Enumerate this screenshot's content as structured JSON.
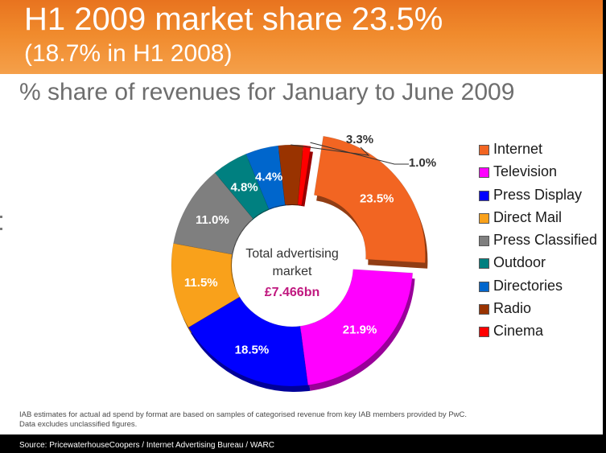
{
  "slide": {
    "title_line1": "H1 2009 market share 23.5%",
    "title_line2": "(18.7% in H1 2008)",
    "subtitle": "% share of revenues for January to June 2009",
    "footnote_line1": "IAB estimates for actual ad spend by  format are based on samples of categorised revenue from key IAB members provided by PwC.",
    "footnote_line2": "Data excludes unclassified figures.",
    "source": "Source: PricewaterhouseCoopers / Internet Advertising Bureau / WARC"
  },
  "chart_data": {
    "type": "pie",
    "variant": "donut",
    "exploded_category": "Internet",
    "center_text_line1": "Total advertising",
    "center_text_line2": "market",
    "center_value": "£7.466bn",
    "categories": [
      "Internet",
      "Television",
      "Press Display",
      "Direct Mail",
      "Press Classified",
      "Outdoor",
      "Directories",
      "Radio",
      "Cinema"
    ],
    "values": [
      23.5,
      21.9,
      18.5,
      11.5,
      11.0,
      4.8,
      4.4,
      3.3,
      1.0
    ],
    "labels": [
      "23.5%",
      "21.9%",
      "18.5%",
      "11.5%",
      "11.0%",
      "4.8%",
      "4.4%",
      "3.3%",
      "1.0%"
    ],
    "colors": [
      "#f26522",
      "#ff00ff",
      "#0000ff",
      "#f9a11b",
      "#7f7f7f",
      "#008080",
      "#0066cc",
      "#993300",
      "#ff0000"
    ],
    "label_colors": [
      "#ffffff",
      "#ffffff",
      "#ffffff",
      "#ffffff",
      "#ffffff",
      "#ffffff",
      "#ffffff",
      "#333333",
      "#333333"
    ],
    "center_value_color": "#c0187f",
    "legend_position": "right"
  }
}
